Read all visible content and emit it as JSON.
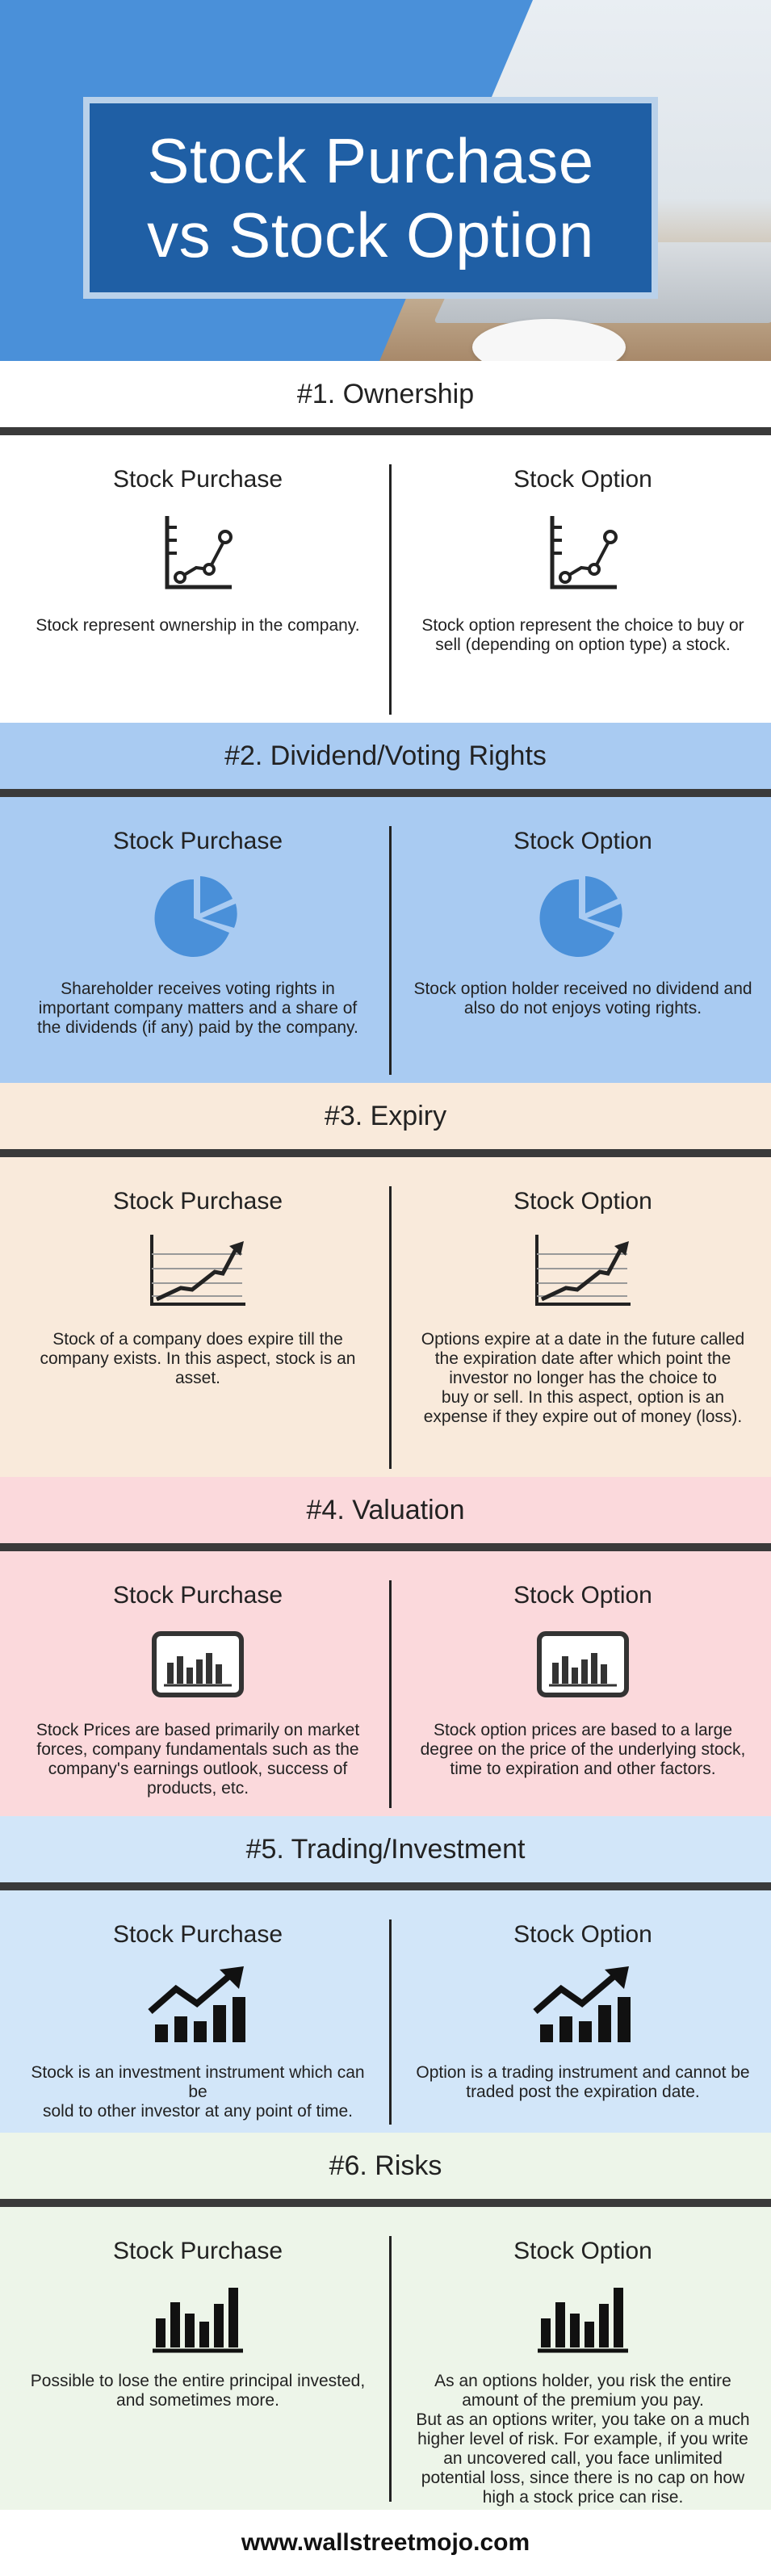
{
  "title": {
    "line1": "Stock Purchase",
    "line2": "vs Stock Option"
  },
  "sections": [
    {
      "title": "#1. Ownership",
      "header_bg": "#ffffff",
      "body_bg": "#ffffff",
      "left": {
        "heading": "Stock Purchase",
        "icon": "line-chart-icon",
        "text": "Stock represent ownership in the company."
      },
      "right": {
        "heading": "Stock Option",
        "icon": "line-chart-icon",
        "text": "Stock option represent the choice to buy or\nsell (depending on option type) a stock."
      }
    },
    {
      "title": "#2. Dividend/Voting Rights",
      "header_bg": "#a9cbf2",
      "body_bg": "#a9cbf2",
      "left": {
        "heading": "Stock Purchase",
        "icon": "pie-chart-icon",
        "text": "Shareholder receives voting rights in important company matters and a share of the dividends (if any) paid by the company."
      },
      "right": {
        "heading": "Stock Option",
        "icon": "pie-chart-icon",
        "text": "Stock option holder received no dividend and\nalso do not enjoys voting rights."
      }
    },
    {
      "title": "#3. Expiry",
      "header_bg": "#f9eadb",
      "body_bg": "#f9eadb",
      "left": {
        "heading": "Stock Purchase",
        "icon": "growth-chart-icon",
        "text": "Stock of a company does expire till the company exists. In this aspect, stock is an asset."
      },
      "right": {
        "heading": "Stock Option",
        "icon": "growth-chart-icon",
        "text": "Options expire at a date in the future called\nthe expiration date after which point the investor no longer has the choice to\nbuy or sell. In this aspect, option is an expense if they expire out of money (loss)."
      }
    },
    {
      "title": "#4. Valuation",
      "header_bg": "#fbd9dc",
      "body_bg": "#fbd9dc",
      "left": {
        "heading": "Stock Purchase",
        "icon": "monitor-chart-icon",
        "text": "Stock Prices are based primarily on market forces, company fundamentals such as the company's earnings outlook, success of products, etc."
      },
      "right": {
        "heading": "Stock Option",
        "icon": "monitor-chart-icon",
        "text": "Stock option prices are based to a large degree on the price of the underlying stock, time to expiration and other factors."
      }
    },
    {
      "title": "#5. Trading/Investment",
      "header_bg": "#d2e6f9",
      "body_bg": "#d2e6f9",
      "left": {
        "heading": "Stock Purchase",
        "icon": "trend-bars-icon",
        "text": "Stock is an investment instrument which can be\nsold to other investor at any point of time."
      },
      "right": {
        "heading": "Stock Option",
        "icon": "trend-bars-icon",
        "text": "Option is a trading instrument and cannot be\ntraded post the expiration date."
      }
    },
    {
      "title": "#6. Risks",
      "header_bg": "#edf5e9",
      "body_bg": "#edf5e9",
      "left": {
        "heading": "Stock Purchase",
        "icon": "bar-chart-icon",
        "text": "Possible to lose the entire principal invested, and sometimes more."
      },
      "right": {
        "heading": "Stock Option",
        "icon": "bar-chart-icon",
        "text": "As an options holder, you risk the entire amount of the premium you pay.\nBut as an options writer, you take on a much higher level of risk. For example, if you write an uncovered call, you face unlimited potential loss, since there is no cap on how high a stock price can rise."
      }
    }
  ],
  "footer": "www.wallstreetmojo.com"
}
